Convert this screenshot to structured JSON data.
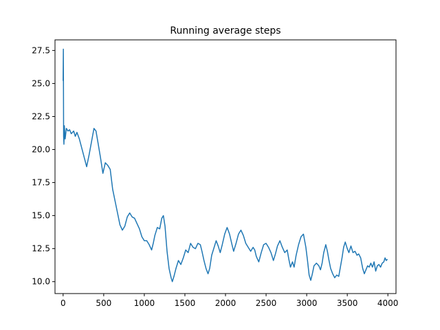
{
  "chart_data": {
    "type": "line",
    "title": "Running average steps",
    "xlabel": "",
    "ylabel": "",
    "xlim": [
      -100,
      4100
    ],
    "ylim": [
      9.1,
      28.3
    ],
    "grid": false,
    "legend": "none",
    "x_ticks": [
      0,
      500,
      1000,
      1500,
      2000,
      2500,
      3000,
      3500,
      4000
    ],
    "x_tick_labels": [
      "0",
      "500",
      "1000",
      "1500",
      "2000",
      "2500",
      "3000",
      "3500",
      "4000"
    ],
    "y_ticks": [
      10.0,
      12.5,
      15.0,
      17.5,
      20.0,
      22.5,
      25.0,
      27.5
    ],
    "y_tick_labels": [
      "10.0",
      "12.5",
      "15.0",
      "17.5",
      "20.0",
      "22.5",
      "25.0",
      "27.5"
    ],
    "series": [
      {
        "color": "#1f77b4",
        "points": [
          [
            0,
            25.2
          ],
          [
            3,
            27.6
          ],
          [
            6,
            21.0
          ],
          [
            10,
            20.4
          ],
          [
            15,
            21.8
          ],
          [
            25,
            20.8
          ],
          [
            40,
            21.6
          ],
          [
            60,
            21.4
          ],
          [
            80,
            21.5
          ],
          [
            100,
            21.2
          ],
          [
            130,
            21.4
          ],
          [
            150,
            21.0
          ],
          [
            170,
            21.3
          ],
          [
            200,
            20.8
          ],
          [
            230,
            20.1
          ],
          [
            260,
            19.4
          ],
          [
            290,
            18.7
          ],
          [
            320,
            19.6
          ],
          [
            350,
            20.6
          ],
          [
            380,
            21.6
          ],
          [
            405,
            21.4
          ],
          [
            430,
            20.5
          ],
          [
            460,
            19.4
          ],
          [
            490,
            18.2
          ],
          [
            520,
            19.0
          ],
          [
            550,
            18.8
          ],
          [
            580,
            18.5
          ],
          [
            610,
            17.0
          ],
          [
            640,
            16.1
          ],
          [
            670,
            15.2
          ],
          [
            700,
            14.3
          ],
          [
            730,
            13.9
          ],
          [
            760,
            14.2
          ],
          [
            790,
            14.9
          ],
          [
            820,
            15.2
          ],
          [
            850,
            14.9
          ],
          [
            880,
            14.8
          ],
          [
            910,
            14.4
          ],
          [
            940,
            14.0
          ],
          [
            970,
            13.4
          ],
          [
            1000,
            13.1
          ],
          [
            1030,
            13.1
          ],
          [
            1060,
            12.8
          ],
          [
            1090,
            12.4
          ],
          [
            1110,
            12.9
          ],
          [
            1130,
            13.5
          ],
          [
            1160,
            14.1
          ],
          [
            1190,
            14.0
          ],
          [
            1215,
            14.8
          ],
          [
            1235,
            15.0
          ],
          [
            1255,
            14.2
          ],
          [
            1280,
            12.3
          ],
          [
            1305,
            11.0
          ],
          [
            1330,
            10.3
          ],
          [
            1345,
            10.0
          ],
          [
            1365,
            10.4
          ],
          [
            1390,
            11.0
          ],
          [
            1420,
            11.6
          ],
          [
            1450,
            11.3
          ],
          [
            1480,
            11.8
          ],
          [
            1510,
            12.4
          ],
          [
            1540,
            12.2
          ],
          [
            1570,
            12.9
          ],
          [
            1600,
            12.6
          ],
          [
            1630,
            12.5
          ],
          [
            1660,
            12.9
          ],
          [
            1690,
            12.8
          ],
          [
            1710,
            12.3
          ],
          [
            1735,
            11.6
          ],
          [
            1760,
            11.0
          ],
          [
            1785,
            10.6
          ],
          [
            1805,
            11.0
          ],
          [
            1830,
            12.0
          ],
          [
            1860,
            12.6
          ],
          [
            1885,
            13.1
          ],
          [
            1910,
            12.7
          ],
          [
            1935,
            12.2
          ],
          [
            1960,
            12.8
          ],
          [
            1990,
            13.6
          ],
          [
            2020,
            14.1
          ],
          [
            2050,
            13.6
          ],
          [
            2080,
            12.8
          ],
          [
            2100,
            12.3
          ],
          [
            2130,
            12.9
          ],
          [
            2160,
            13.6
          ],
          [
            2190,
            13.9
          ],
          [
            2220,
            13.5
          ],
          [
            2250,
            12.9
          ],
          [
            2280,
            12.6
          ],
          [
            2310,
            12.3
          ],
          [
            2340,
            12.6
          ],
          [
            2360,
            12.4
          ],
          [
            2380,
            11.9
          ],
          [
            2410,
            11.5
          ],
          [
            2440,
            12.2
          ],
          [
            2470,
            12.8
          ],
          [
            2500,
            12.9
          ],
          [
            2530,
            12.6
          ],
          [
            2560,
            12.2
          ],
          [
            2590,
            11.6
          ],
          [
            2615,
            12.1
          ],
          [
            2640,
            12.7
          ],
          [
            2670,
            13.1
          ],
          [
            2700,
            12.6
          ],
          [
            2730,
            12.2
          ],
          [
            2760,
            12.4
          ],
          [
            2780,
            11.7
          ],
          [
            2800,
            11.1
          ],
          [
            2825,
            11.5
          ],
          [
            2845,
            11.1
          ],
          [
            2870,
            12.0
          ],
          [
            2900,
            12.8
          ],
          [
            2930,
            13.4
          ],
          [
            2960,
            13.6
          ],
          [
            2990,
            12.6
          ],
          [
            3010,
            11.6
          ],
          [
            3030,
            10.5
          ],
          [
            3050,
            10.1
          ],
          [
            3070,
            10.6
          ],
          [
            3090,
            11.2
          ],
          [
            3120,
            11.4
          ],
          [
            3150,
            11.2
          ],
          [
            3170,
            10.9
          ],
          [
            3190,
            11.4
          ],
          [
            3210,
            12.2
          ],
          [
            3235,
            12.8
          ],
          [
            3255,
            12.3
          ],
          [
            3275,
            11.6
          ],
          [
            3295,
            11.0
          ],
          [
            3320,
            10.6
          ],
          [
            3345,
            10.3
          ],
          [
            3370,
            10.5
          ],
          [
            3395,
            10.4
          ],
          [
            3415,
            11.1
          ],
          [
            3435,
            11.8
          ],
          [
            3455,
            12.6
          ],
          [
            3475,
            13.0
          ],
          [
            3500,
            12.5
          ],
          [
            3520,
            12.2
          ],
          [
            3545,
            12.7
          ],
          [
            3570,
            12.2
          ],
          [
            3595,
            12.3
          ],
          [
            3620,
            12.0
          ],
          [
            3640,
            12.1
          ],
          [
            3665,
            11.8
          ],
          [
            3690,
            11.0
          ],
          [
            3710,
            10.6
          ],
          [
            3730,
            10.9
          ],
          [
            3750,
            11.2
          ],
          [
            3770,
            11.1
          ],
          [
            3790,
            11.4
          ],
          [
            3810,
            11.1
          ],
          [
            3830,
            11.5
          ],
          [
            3850,
            10.8
          ],
          [
            3870,
            11.2
          ],
          [
            3890,
            11.3
          ],
          [
            3910,
            11.1
          ],
          [
            3930,
            11.4
          ],
          [
            3950,
            11.5
          ],
          [
            3965,
            11.8
          ],
          [
            3980,
            11.6
          ],
          [
            3995,
            11.7
          ]
        ]
      }
    ]
  }
}
